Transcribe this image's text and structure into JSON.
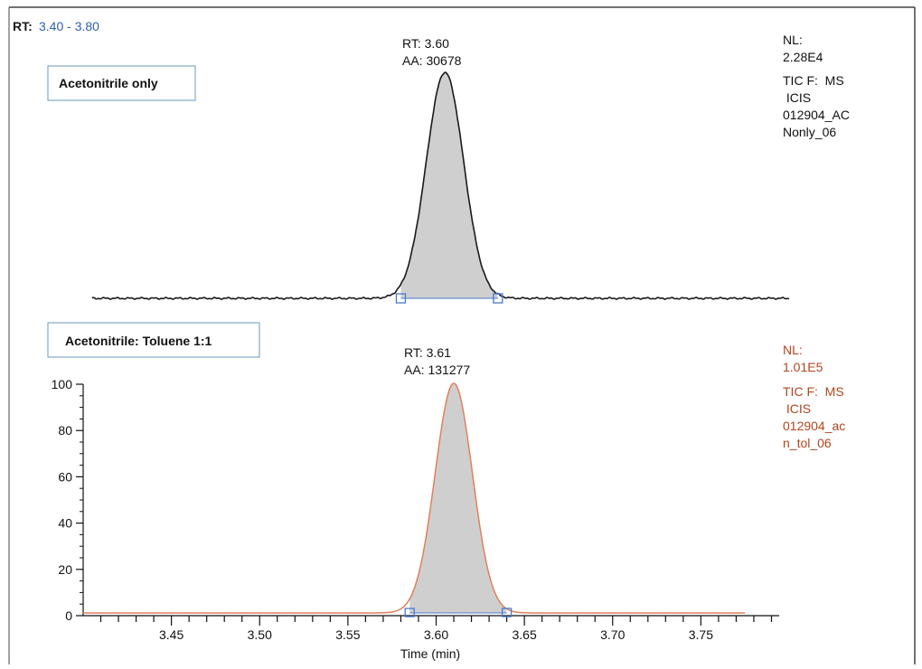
{
  "header": {
    "rt_label": "RT:",
    "rt_range": "3.40 - 3.80"
  },
  "colors": {
    "top_trace": "#1a1a1a",
    "bottom_trace": "#e0805a",
    "fill": "#cfcfcf",
    "baseline_marker": "#4a78d0",
    "bottom_nl_text": "#b0451f",
    "range_text": "#2e5fb0",
    "box_border": "#6a9ab8"
  },
  "chart_data": [
    {
      "type": "line",
      "label_box": "Acetonitrile only",
      "peak_annotation": {
        "rt": "RT: 3.60",
        "aa": "AA: 30678"
      },
      "nl_block": [
        "NL:",
        "2.28E4",
        "TIC F:  MS",
        " ICIS",
        "012904_AC",
        "Nonly_06"
      ],
      "peak": {
        "rt": 3.605,
        "start": 3.58,
        "end": 3.635,
        "height_pct": 100
      },
      "baseline_start": 3.405,
      "xlim": [
        3.4,
        3.8
      ],
      "ylim": [
        0,
        100
      ]
    },
    {
      "type": "line",
      "label_box": "Acetonitrile: Toluene 1:1",
      "peak_annotation": {
        "rt": "RT: 3.61",
        "aa": "AA: 131277"
      },
      "nl_block": [
        "NL:",
        "1.01E5",
        "TIC F:  MS",
        " ICIS",
        "012904_ac",
        "n_tol_06"
      ],
      "peak": {
        "rt": 3.61,
        "start": 3.585,
        "end": 3.64,
        "height_pct": 100
      },
      "xlim": [
        3.4,
        3.8
      ],
      "ylim": [
        0,
        100
      ],
      "yticks": [
        "0",
        "20",
        "40",
        "60",
        "80",
        "100"
      ],
      "xticks": [
        "3.45",
        "3.50",
        "3.55",
        "3.60",
        "3.65",
        "3.70",
        "3.75"
      ],
      "xlabel": "Time (min)"
    }
  ]
}
